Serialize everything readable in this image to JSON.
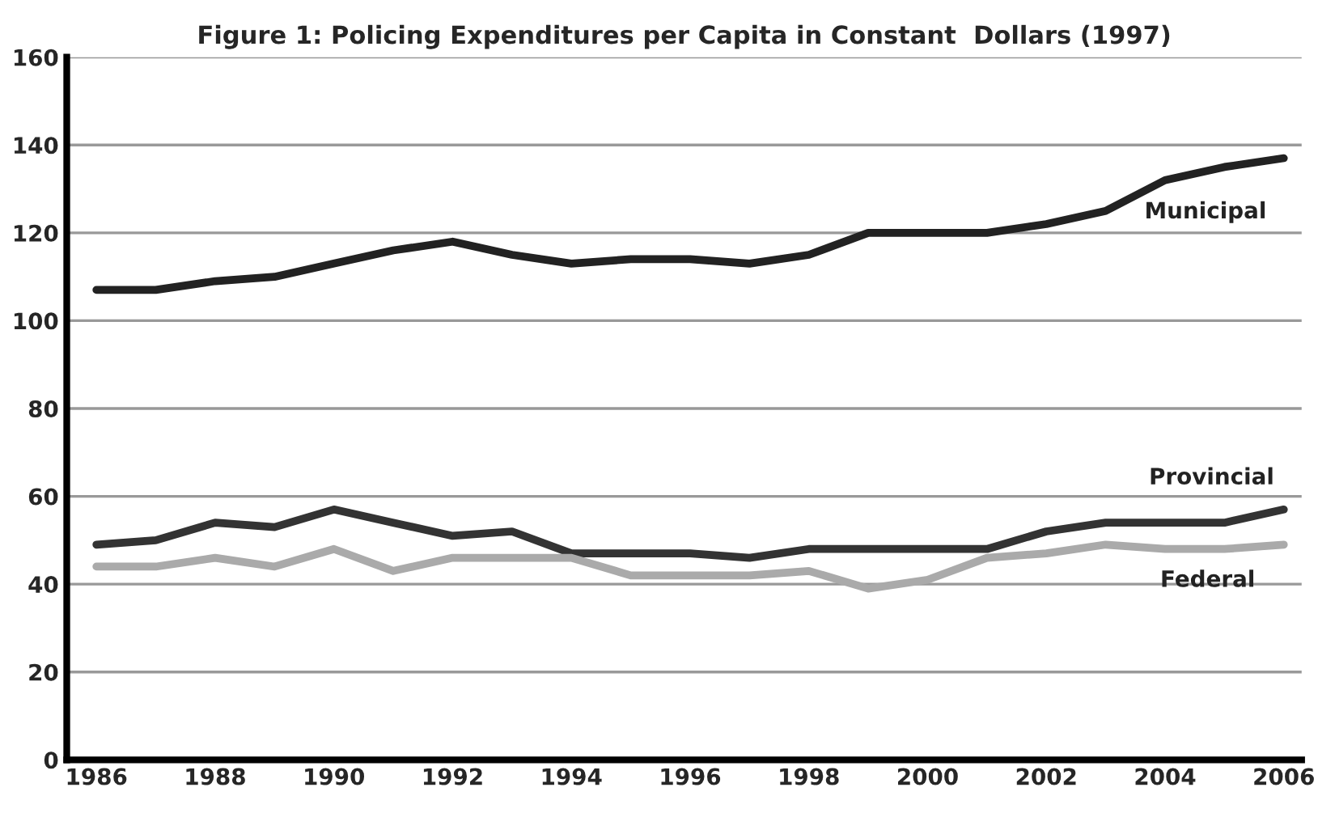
{
  "chart_data": {
    "type": "line",
    "title": "Figure 1: Policing Expenditures per Capita in Constant  Dollars (1997)",
    "x": [
      1986,
      1987,
      1988,
      1989,
      1990,
      1991,
      1992,
      1993,
      1994,
      1995,
      1996,
      1997,
      1998,
      1999,
      2000,
      2001,
      2002,
      2003,
      2004,
      2005,
      2006
    ],
    "series": [
      {
        "name": "Municipal",
        "color": "#222222",
        "values": [
          107,
          107,
          109,
          110,
          113,
          116,
          118,
          115,
          113,
          114,
          114,
          113,
          115,
          120,
          120,
          120,
          122,
          125,
          132,
          135,
          137
        ]
      },
      {
        "name": "Provincial",
        "color": "#333333",
        "values": [
          49,
          50,
          54,
          53,
          57,
          54,
          51,
          52,
          47,
          47,
          47,
          46,
          48,
          48,
          48,
          48,
          52,
          54,
          54,
          54,
          57
        ]
      },
      {
        "name": "Federal",
        "color": "#aaaaaa",
        "values": [
          44,
          44,
          46,
          44,
          48,
          43,
          46,
          46,
          46,
          42,
          42,
          42,
          43,
          39,
          41,
          46,
          47,
          49,
          48,
          48,
          49
        ]
      }
    ],
    "xlim": [
      1985.5,
      2006.3
    ],
    "xticks": [
      1986,
      1988,
      1990,
      1992,
      1994,
      1996,
      1998,
      2000,
      2002,
      2004,
      2006
    ],
    "ylim": [
      0,
      160
    ],
    "yticks": [
      0,
      20,
      40,
      60,
      80,
      100,
      120,
      140,
      160
    ],
    "grid": "y",
    "legend": false,
    "marker": "none",
    "line_style": "solid"
  }
}
